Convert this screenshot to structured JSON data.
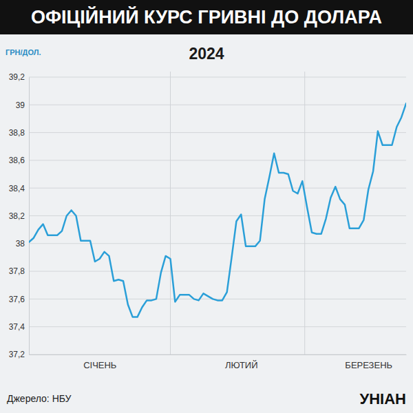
{
  "chart_data": {
    "type": "line",
    "title": "ОФІЦІЙНИЙ КУРС ГРИВНІ ДО ДОЛАРА",
    "subtitle": "2024",
    "y_label": "ГРН/ДОЛ.",
    "source": "Джерело: НБУ",
    "logo": "УНІАН",
    "categories": [
      null,
      null,
      null,
      null,
      null,
      null,
      null,
      null,
      null,
      null,
      null,
      null,
      null,
      null,
      null,
      "СІЧЕНЬ",
      null,
      null,
      null,
      null,
      null,
      null,
      null,
      null,
      null,
      null,
      null,
      null,
      null,
      null,
      null,
      null,
      null,
      null,
      null,
      null,
      null,
      null,
      null,
      null,
      null,
      null,
      null,
      null,
      null,
      "ЛЮТИЙ",
      null,
      null,
      null,
      null,
      null,
      null,
      null,
      null,
      null,
      null,
      null,
      null,
      null,
      null,
      null,
      null,
      null,
      null,
      null,
      null,
      null,
      null,
      null,
      null,
      null,
      null,
      "БЕРЕЗЕНЬ",
      null,
      null,
      null,
      null,
      null,
      null,
      null,
      null
    ],
    "values": [
      38.01,
      38.04,
      38.1,
      38.14,
      38.06,
      38.06,
      38.06,
      38.09,
      38.2,
      38.24,
      38.2,
      38.02,
      38.02,
      38.02,
      37.87,
      37.89,
      37.94,
      37.91,
      37.73,
      37.74,
      37.73,
      37.56,
      37.47,
      37.47,
      37.54,
      37.59,
      37.59,
      37.6,
      37.79,
      37.91,
      37.89,
      37.58,
      37.63,
      37.63,
      37.63,
      37.6,
      37.59,
      37.64,
      37.62,
      37.6,
      37.59,
      37.59,
      37.65,
      37.9,
      38.16,
      38.21,
      37.98,
      37.98,
      37.98,
      38.02,
      38.32,
      38.48,
      38.65,
      38.51,
      38.51,
      38.5,
      38.38,
      38.36,
      38.45,
      38.26,
      38.08,
      38.07,
      38.07,
      38.18,
      38.33,
      38.41,
      38.32,
      38.28,
      38.11,
      38.11,
      38.11,
      38.17,
      38.39,
      38.52,
      38.81,
      38.71,
      38.71,
      38.71,
      38.84,
      38.91,
      39.01
    ],
    "color": "#2a9fd8",
    "ylim": [
      37.2,
      39.2
    ],
    "yticks": [
      {
        "value": 37.2,
        "label": "37,2"
      },
      {
        "value": 37.4,
        "label": "37,4"
      },
      {
        "value": 37.6,
        "label": "37,6"
      },
      {
        "value": 37.8,
        "label": "37,8"
      },
      38,
      {
        "value": 38.2,
        "label": "38,2"
      },
      {
        "value": 38.4,
        "label": "38,4"
      },
      {
        "value": 38.6,
        "label": "38,6"
      },
      {
        "value": 38.8,
        "label": "38,8"
      },
      39,
      {
        "value": 39.2,
        "label": "39,2"
      }
    ],
    "grid": true
  }
}
